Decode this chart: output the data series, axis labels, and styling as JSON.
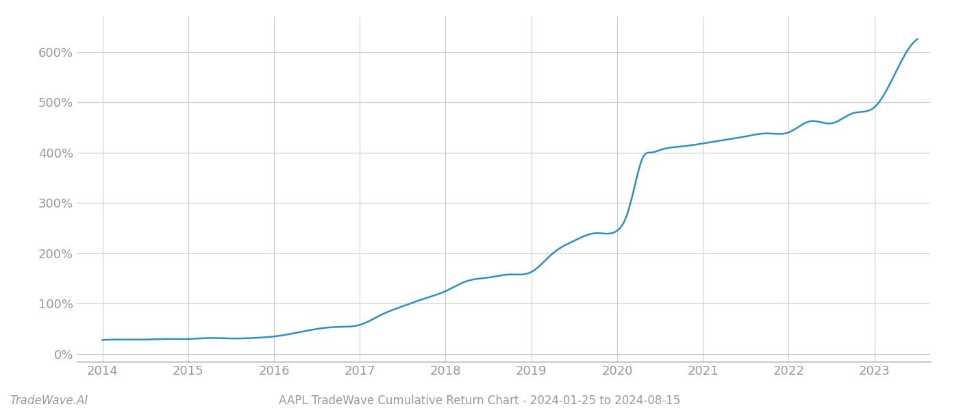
{
  "title": "AAPL TradeWave Cumulative Return Chart - 2024-01-25 to 2024-08-15",
  "watermark": "TradeWave.AI",
  "line_color": "#2f8fbf",
  "background_color": "#ffffff",
  "grid_color": "#cccccc",
  "axis_color": "#999999",
  "x_years": [
    2014,
    2015,
    2016,
    2017,
    2018,
    2019,
    2020,
    2021,
    2022,
    2023
  ],
  "y_ticks": [
    0,
    100,
    200,
    300,
    400,
    500,
    600
  ],
  "ylim": [
    -15,
    670
  ],
  "data_x": [
    2014.0,
    2014.25,
    2014.5,
    2014.75,
    2015.0,
    2015.25,
    2015.5,
    2015.75,
    2016.0,
    2016.25,
    2016.5,
    2016.75,
    2017.0,
    2017.25,
    2017.5,
    2017.75,
    2018.0,
    2018.25,
    2018.5,
    2018.75,
    2019.0,
    2019.25,
    2019.5,
    2019.75,
    2020.0,
    2020.1,
    2020.2,
    2020.3,
    2020.4,
    2020.5,
    2020.75,
    2021.0,
    2021.25,
    2021.5,
    2021.75,
    2022.0,
    2022.25,
    2022.5,
    2022.75,
    2023.0,
    2023.25,
    2023.5
  ],
  "data_y": [
    28,
    29,
    29,
    30,
    30,
    32,
    31,
    32,
    35,
    42,
    50,
    54,
    58,
    78,
    95,
    110,
    125,
    145,
    152,
    158,
    163,
    200,
    225,
    240,
    245,
    270,
    330,
    390,
    400,
    405,
    412,
    418,
    425,
    432,
    438,
    440,
    462,
    458,
    478,
    490,
    560,
    625
  ]
}
